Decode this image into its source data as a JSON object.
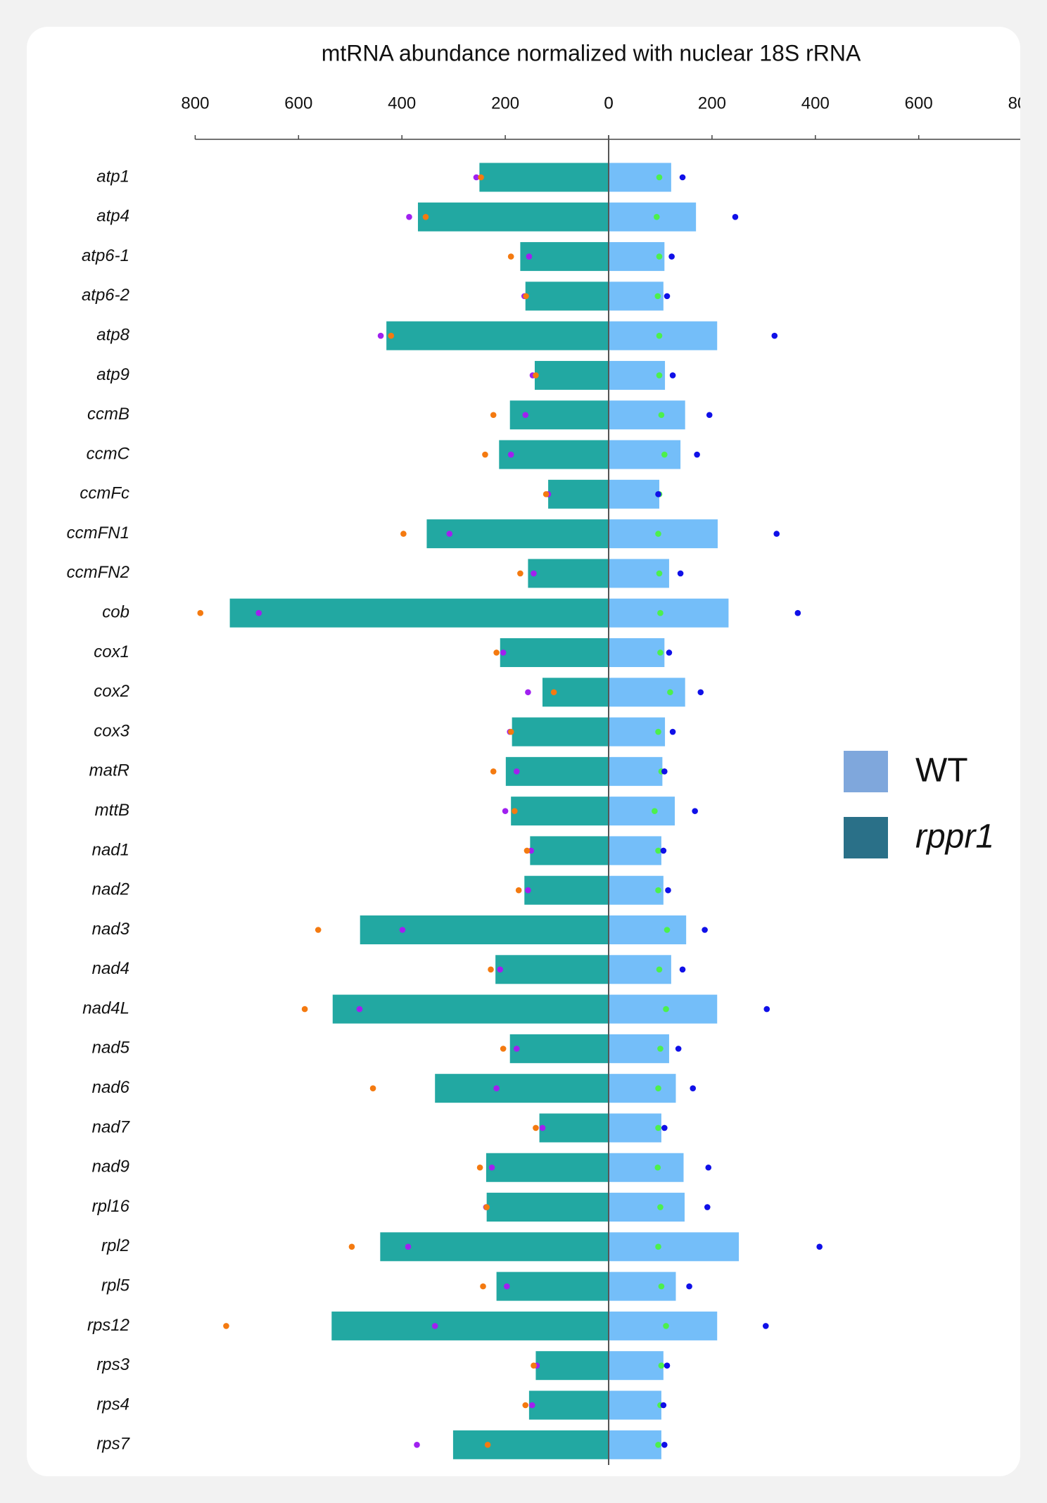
{
  "chart_data": {
    "type": "butterfly",
    "title": "mtRNA abundance normalized with nuclear 18S rRNA",
    "categories": [
      "atp1",
      "atp4",
      "atp6-1",
      "atp6-2",
      "atp8",
      "atp9",
      "ccmB",
      "ccmC",
      "ccmFc",
      "ccmFN1",
      "ccmFN2",
      "cob",
      "cox1",
      "cox2",
      "cox3",
      "matR",
      "mttB",
      "nad1",
      "nad2",
      "nad3",
      "nad4",
      "nad4L",
      "nad5",
      "nad6",
      "nad7",
      "nad9",
      "rpl16",
      "rpl2",
      "rpl5",
      "rps12",
      "rps3",
      "rps4",
      "rps7"
    ],
    "left_xlim": [
      800,
      0
    ],
    "left_xticks": [
      800,
      600,
      400,
      200,
      0
    ],
    "right_xlim": [
      0,
      800
    ],
    "right_xticks": [
      0,
      200,
      400,
      600,
      800
    ],
    "series": [
      {
        "name": "WT",
        "side": "right",
        "color": "#74bef9",
        "legend_color": "#7fa7dc",
        "values": [
          121,
          169,
          108,
          106,
          210,
          109,
          148,
          139,
          98,
          211,
          117,
          232,
          108,
          148,
          109,
          104,
          128,
          102,
          106,
          150,
          121,
          210,
          117,
          130,
          102,
          145,
          147,
          252,
          130,
          210,
          106,
          102,
          102
        ],
        "replicates": [
          {
            "color": "#4cf04c",
            "values": [
              98,
              93,
              98,
              95,
              98,
              98,
              102,
              108,
              98,
              96,
              98,
              100,
              100,
              119,
              96,
              102,
              89,
              96,
              96,
              113,
              98,
              111,
              100,
              96,
              96,
              95,
              100,
              96,
              102,
              111,
              102,
              100,
              96
            ]
          },
          {
            "color": "#1010e8",
            "values": [
              143,
              245,
              122,
              113,
              321,
              124,
              195,
              171,
              96,
              325,
              139,
              366,
              117,
              178,
              124,
              108,
              167,
              106,
              115,
              186,
              143,
              306,
              135,
              163,
              108,
              193,
              191,
              408,
              156,
              304,
              113,
              106,
              108
            ]
          }
        ]
      },
      {
        "name": "rppr1",
        "side": "left",
        "color": "#22a8a2",
        "legend_color": "#2a7088",
        "values": [
          250,
          369,
          171,
          161,
          430,
          143,
          191,
          212,
          117,
          352,
          156,
          733,
          210,
          128,
          187,
          199,
          189,
          152,
          163,
          481,
          219,
          534,
          191,
          336,
          134,
          237,
          236,
          442,
          217,
          536,
          141,
          154,
          301
        ],
        "replicates": [
          {
            "color": "#a020f0",
            "values": [
              256,
              386,
              154,
              163,
              441,
              147,
              161,
              189,
              117,
              308,
              145,
              677,
              204,
              156,
              191,
              178,
              200,
              150,
              156,
              399,
              210,
              482,
              178,
              217,
              128,
              226,
              237,
              388,
              197,
              336,
              139,
              148,
              371
            ]
          },
          {
            "color": "#f47a10",
            "values": [
              247,
              354,
              189,
              160,
              421,
              141,
              223,
              239,
              121,
              397,
              171,
              790,
              217,
              106,
              189,
              223,
              182,
              158,
              174,
              562,
              228,
              588,
              204,
              456,
              141,
              249,
              236,
              497,
              243,
              740,
              145,
              161,
              234
            ]
          }
        ]
      }
    ]
  }
}
